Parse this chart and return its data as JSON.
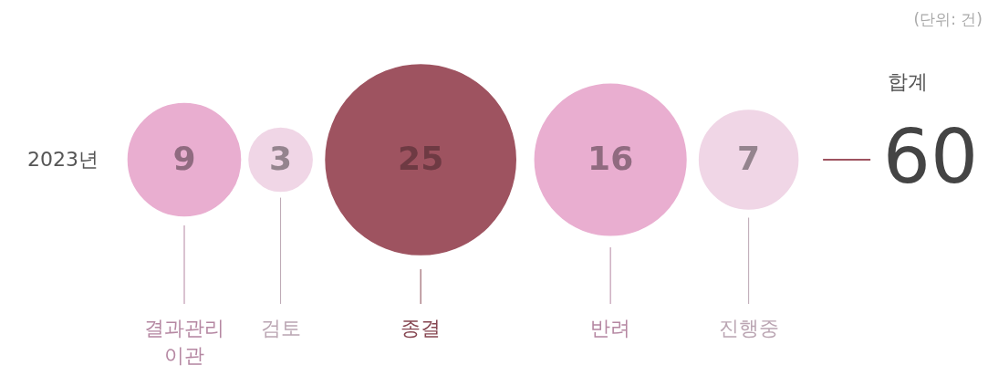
{
  "chart_data": {
    "type": "other",
    "ylabel": "2023년",
    "categories": [
      "결과관리\n이관",
      "검토",
      "종결",
      "반려",
      "진행중"
    ],
    "values": [
      9,
      3,
      25,
      16,
      7
    ],
    "colors": [
      "#e9aed0",
      "#f0d6e6",
      "#9e5360",
      "#e9aed0",
      "#f0d6e6"
    ],
    "data_labels": true,
    "annotations": [
      "(단위: 건)",
      "합계",
      "60"
    ]
  }
}
